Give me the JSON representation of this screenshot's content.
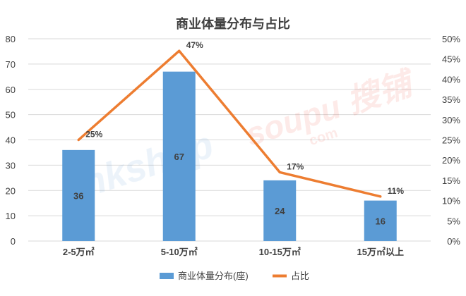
{
  "chart_data": {
    "type": "bar",
    "title": "商业体量分布与占比",
    "categories": [
      "2-5万㎡",
      "5-10万㎡",
      "10-15万㎡",
      "15万㎡以上"
    ],
    "series": [
      {
        "name": "商业体量分布(座)",
        "type": "bar",
        "axis": "left",
        "values": [
          36,
          67,
          24,
          16
        ],
        "data_labels": [
          "36",
          "67",
          "24",
          "16"
        ],
        "color": "#5b9bd5"
      },
      {
        "name": "占比",
        "type": "line",
        "axis": "right",
        "values": [
          25,
          47,
          17,
          11
        ],
        "data_labels": [
          "25%",
          "47%",
          "17%",
          "11%"
        ],
        "color": "#ed7d31"
      }
    ],
    "y_left": {
      "min": 0,
      "max": 80,
      "step": 10,
      "ticks": [
        "0",
        "10",
        "20",
        "30",
        "40",
        "50",
        "60",
        "70",
        "80"
      ]
    },
    "y_right": {
      "min": 0,
      "max": 50,
      "step": 5,
      "ticks": [
        "0%",
        "5%",
        "10%",
        "15%",
        "20%",
        "25%",
        "30%",
        "35%",
        "40%",
        "45%",
        "50%"
      ]
    },
    "grid": true,
    "legend": "bottom",
    "watermark": {
      "left": "linkshop",
      "right": "soupu 搜铺",
      "right_sub": "com"
    }
  }
}
